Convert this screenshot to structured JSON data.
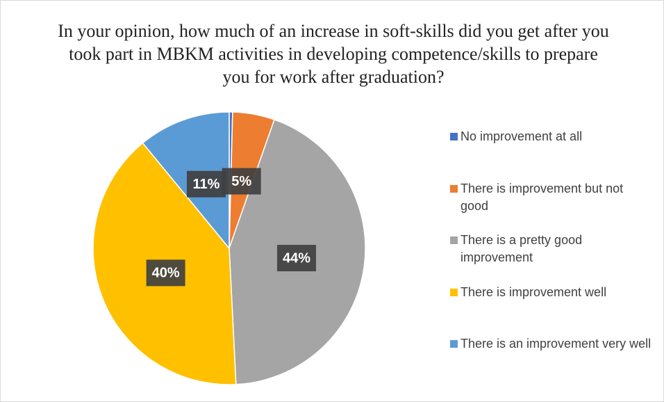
{
  "chart_data": {
    "type": "pie",
    "title": "In your opinion, how much of an increase in soft-skills did you get after you took part in MBKM activities in developing competence/skills to prepare you for work after graduation?",
    "categories": [
      "No improvement at all",
      "There is improvement but not good",
      "There is a pretty good improvement",
      "There is improvement well",
      "There is an improvement very well"
    ],
    "values": [
      0.4,
      5,
      44,
      40,
      11
    ],
    "value_labels": [
      null,
      "5%",
      "44%",
      "40%",
      "11%"
    ],
    "colors": [
      "#4472c4",
      "#ed7d31",
      "#a5a5a5",
      "#ffc000",
      "#5b9bd5"
    ],
    "legend": "right"
  }
}
